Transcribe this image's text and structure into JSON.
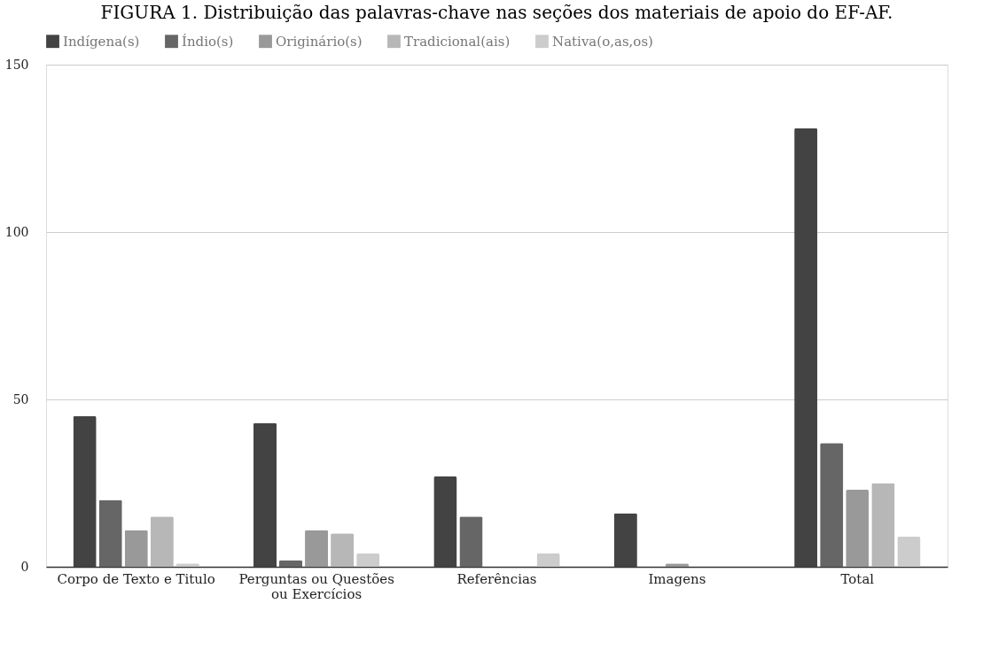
{
  "chart_data": {
    "type": "bar",
    "title": "FIGURA 1. Distribuição das palavras-chave nas seções dos materiais de apoio do EF-AF.",
    "categories": [
      "Corpo de Texto e Titulo",
      "Perguntas ou Questões\nou Exercícios",
      "Referências",
      "Imagens",
      "Total"
    ],
    "series": [
      {
        "name": "Indígena(s)",
        "color": "#434343",
        "values": [
          45,
          43,
          27,
          16,
          131
        ]
      },
      {
        "name": "Índio(s)",
        "color": "#666666",
        "values": [
          20,
          2,
          15,
          0,
          37
        ]
      },
      {
        "name": "Originário(s)",
        "color": "#999999",
        "values": [
          11,
          11,
          0,
          1,
          23
        ]
      },
      {
        "name": "Tradicional(ais)",
        "color": "#b7b7b7",
        "values": [
          15,
          10,
          0,
          0,
          25
        ]
      },
      {
        "name": "Nativa(o,as,os)",
        "color": "#cccccc",
        "values": [
          1,
          4,
          4,
          0,
          9
        ]
      }
    ],
    "ylim": [
      0,
      150
    ],
    "yticks": [
      0,
      50,
      100,
      150
    ],
    "grid": "y",
    "legend": "top"
  }
}
